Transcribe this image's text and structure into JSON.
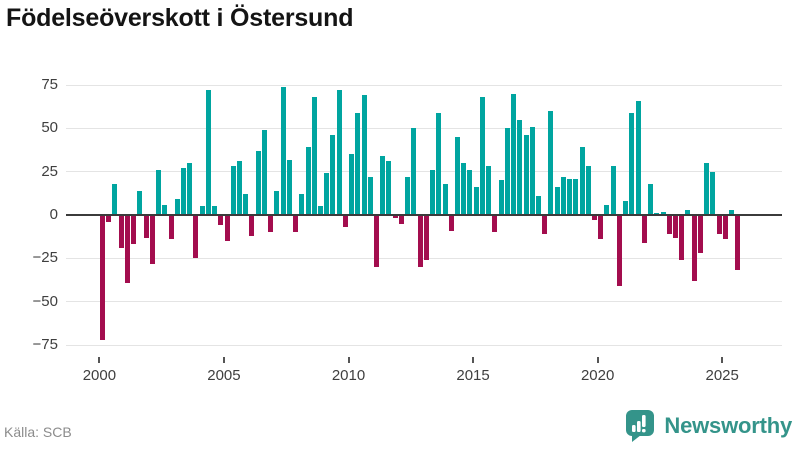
{
  "title": "Födelseöverskott i Östersund",
  "source_label": "Källa: SCB",
  "branding": {
    "name": "Newsworthy",
    "logo_color": "#34948a",
    "logo_icon": "bar-chart-speech-bubble-icon"
  },
  "colors": {
    "positive_bar": "#00a5a0",
    "negative_bar": "#a30d4e",
    "gridline": "#e4e4e4",
    "zero_line": "#3b3b3b",
    "axis_text": "#3f3f3f",
    "source_text": "#8c8c8c",
    "title_text": "#141414"
  },
  "chart_data": {
    "type": "bar",
    "title": "Födelseöverskott i Östersund",
    "xlabel": "",
    "ylabel": "",
    "unit": "persons per quarter",
    "frequency": "quarterly",
    "start_period": "2000 Q1",
    "end_period": "2025 Q3",
    "ylim": [
      -75,
      75
    ],
    "grid": "horizontal",
    "legend": "none",
    "y_ticks": [
      {
        "value": 75,
        "label": "75"
      },
      {
        "value": 50,
        "label": "50"
      },
      {
        "value": 25,
        "label": "25"
      },
      {
        "value": 0,
        "label": "0"
      },
      {
        "value": -25,
        "label": "−25"
      },
      {
        "value": -50,
        "label": "−50"
      },
      {
        "value": -75,
        "label": "−75"
      }
    ],
    "x_tick_years": [
      2000,
      2005,
      2010,
      2015,
      2020,
      2025
    ],
    "values": [
      -72,
      -4,
      18,
      -19,
      -39,
      -17,
      14,
      -13,
      -28,
      26,
      6,
      -14,
      9,
      27,
      30,
      -25,
      5,
      72,
      5,
      -6,
      -15,
      28,
      31,
      12,
      -12,
      37,
      49,
      -10,
      14,
      74,
      32,
      -10,
      12,
      39,
      68,
      5,
      24,
      46,
      72,
      -7,
      35,
      59,
      69,
      22,
      -30,
      34,
      31,
      -2,
      -5,
      22,
      50,
      -30,
      -26,
      26,
      59,
      18,
      -9,
      45,
      30,
      26,
      16,
      68,
      28,
      -10,
      20,
      50,
      70,
      55,
      46,
      51,
      11,
      -11,
      60,
      16,
      22,
      21,
      21,
      39,
      28,
      -3,
      -14,
      6,
      28,
      -41,
      8,
      59,
      66,
      -16,
      18,
      1,
      2,
      -11,
      -13,
      -26,
      3,
      -38,
      -22,
      30,
      25,
      -11,
      -14,
      3,
      -32
    ]
  }
}
